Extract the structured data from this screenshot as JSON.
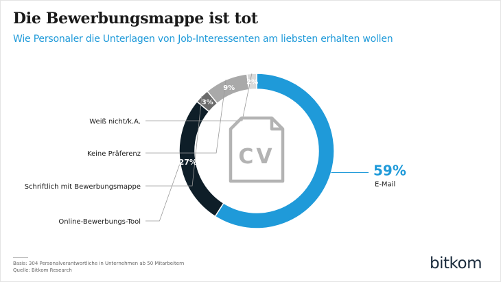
{
  "header": {
    "title": "Die Bewerbungsmappe ist tot",
    "subtitle": "Wie Personaler die Unterlagen von Job-Interessenten am liebsten erhalten wollen"
  },
  "center_icon": "cv-document-icon",
  "center_icon_text": "CV",
  "chart_data": {
    "type": "pie",
    "donut": true,
    "title": "Die Bewerbungsmappe ist tot",
    "subtitle": "Wie Personaler die Unterlagen von Job-Interessenten am liebsten erhalten wollen",
    "unit": "%",
    "slices": [
      {
        "label": "E-Mail",
        "value": 59,
        "value_label": "59%",
        "color": "#1f9ad9"
      },
      {
        "label": "Online-Bewerbungs-Tool",
        "value": 27,
        "value_label": "27%",
        "color": "#0e1e28"
      },
      {
        "label": "Schriftlich mit Bewerbungsmappe",
        "value": 3,
        "value_label": "3%",
        "color": "#6b6b6b"
      },
      {
        "label": "Keine Präferenz",
        "value": 9,
        "value_label": "9%",
        "color": "#a9a9a9"
      },
      {
        "label": "Weiß nicht/k.A.",
        "value": 2,
        "value_label": "2%",
        "color": "#d9d9d9"
      }
    ]
  },
  "footer": {
    "basis": "Basis: 304 Personalverantwortliche in Unternehmen ab 50 Mitarbeitern",
    "source": "Quelle: Bitkom Research",
    "logo": "bitkom"
  },
  "colors": {
    "accent": "#1f9ad9",
    "title": "#1a1a1a",
    "dark_segment": "#0e1e28",
    "leader_line": "#9a9a9a",
    "icon": "#b3b3b3"
  }
}
